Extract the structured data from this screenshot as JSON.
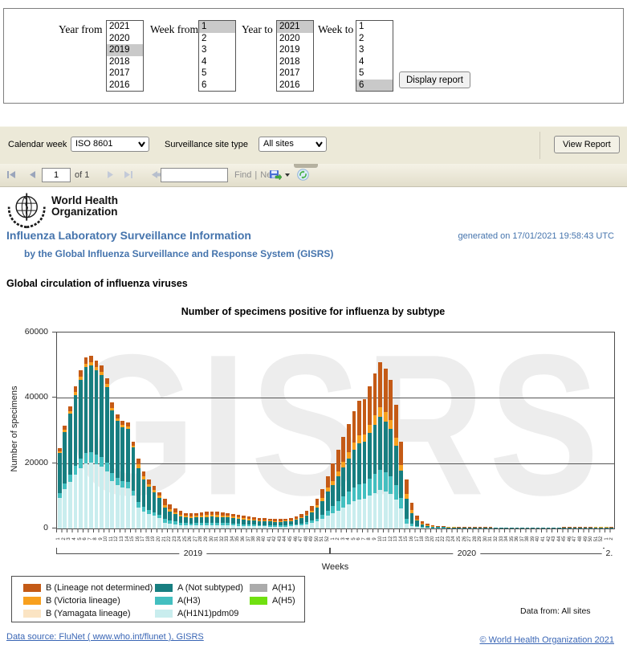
{
  "filter_form": {
    "year_from_label": "Year from",
    "week_from_label": "Week from",
    "year_to_label": "Year to",
    "week_to_label": "Week to",
    "year_options": [
      "2021",
      "2020",
      "2019",
      "2018",
      "2017",
      "2016"
    ],
    "week_options": [
      "1",
      "2",
      "3",
      "4",
      "5",
      "6"
    ],
    "year_from_selected": "2019",
    "week_from_selected": "1",
    "year_to_selected": "2021",
    "week_to_selected": "6",
    "display_report_button": "Display report"
  },
  "param_toolbar": {
    "calendar_week_label": "Calendar week",
    "calendar_week_value": "ISO 8601",
    "site_type_label": "Surveillance site type",
    "site_type_value": "All sites",
    "view_report_button": "View Report"
  },
  "nav_toolbar": {
    "page_number": "1",
    "of_label": "of 1",
    "find_label": "Find",
    "separator": "|",
    "next_label": "Next",
    "search_value": ""
  },
  "header": {
    "who_name_line1": "World Health",
    "who_name_line2": "Organization",
    "title": "Influenza Laboratory Surveillance Information",
    "subtitle": "by the Global Influenza Surveillance and Response System (GISRS)",
    "generated": "generated on 17/01/2021 19:58:43 UTC"
  },
  "section_title": "Global circulation of influenza viruses",
  "chart_data": {
    "type": "bar",
    "stacked": true,
    "title": "Number of specimens positive for influenza by subtype",
    "xlabel": "Weeks",
    "ylabel": "Number of specimens",
    "ylim": [
      0,
      60000
    ],
    "yticks": [
      0,
      20000,
      40000,
      60000
    ],
    "grid": "horizontal",
    "watermark": "GISRS",
    "week_groups": [
      {
        "label": "2019",
        "weeks": 52
      },
      {
        "label": "2020",
        "weeks": 52
      },
      {
        "label": "2.",
        "weeks": 2
      }
    ],
    "series_names": {
      "bnd": "B (Lineage not determined)",
      "vic": "B (Victoria lineage)",
      "yam": "B (Yamagata lineage)",
      "ans": "A (Not subtyped)",
      "h3": "A(H3)",
      "pdm": "A(H1N1)pdm09",
      "h1": "A(H1)",
      "h5": "A(H5)"
    },
    "series_colors": {
      "bnd": "#C45A16",
      "vic": "#F8A01E",
      "yam": "#FBE4C3",
      "ans": "#177E80",
      "h3": "#43BFC0",
      "pdm": "#C9EDEE",
      "h1": "#ABABAB",
      "h5": "#70E010"
    },
    "stack_order": [
      "pdm",
      "h3",
      "ans",
      "vic",
      "bnd"
    ],
    "totals": [
      24500,
      31500,
      37500,
      43500,
      48500,
      52500,
      53000,
      51500,
      50000,
      46000,
      38500,
      35000,
      33000,
      32500,
      26500,
      21500,
      17500,
      15000,
      13000,
      11000,
      9000,
      7500,
      6200,
      5300,
      4800,
      4700,
      4800,
      5000,
      5100,
      5200,
      5100,
      5000,
      4800,
      4500,
      4200,
      3900,
      3600,
      3400,
      3200,
      3100,
      3000,
      2900,
      2900,
      3000,
      3300,
      3800,
      4500,
      5500,
      7000,
      9000,
      12000,
      16000,
      20000,
      24000,
      28000,
      32000,
      36000,
      39000,
      39500,
      43500,
      47500,
      51000,
      49000,
      45500,
      38000,
      26500,
      15000,
      8000,
      4000,
      2200,
      1400,
      1000,
      800,
      700,
      600,
      550,
      500,
      500,
      450,
      450,
      400,
      400,
      400,
      350,
      350,
      350,
      300,
      300,
      300,
      300,
      300,
      300,
      300,
      350,
      350,
      350,
      400,
      400,
      450,
      450,
      500,
      500,
      550,
      600,
      600,
      500
    ],
    "composition_periods": [
      {
        "from": 0,
        "to": 14,
        "fractions": {
          "pdm": 0.38,
          "h3": 0.06,
          "ans": 0.5,
          "vic": 0.02,
          "bnd": 0.04
        }
      },
      {
        "from": 15,
        "to": 19,
        "fractions": {
          "pdm": 0.3,
          "h3": 0.08,
          "ans": 0.48,
          "vic": 0.05,
          "bnd": 0.09
        }
      },
      {
        "from": 20,
        "to": 43,
        "fractions": {
          "pdm": 0.2,
          "h3": 0.14,
          "ans": 0.36,
          "vic": 0.1,
          "bnd": 0.2
        }
      },
      {
        "from": 44,
        "to": 51,
        "fractions": {
          "pdm": 0.24,
          "h3": 0.1,
          "ans": 0.36,
          "vic": 0.08,
          "bnd": 0.22
        }
      },
      {
        "from": 52,
        "to": 65,
        "fractions": {
          "pdm": 0.23,
          "h3": 0.12,
          "ans": 0.32,
          "vic": 0.06,
          "bnd": 0.27
        }
      },
      {
        "from": 66,
        "to": 105,
        "fractions": {
          "pdm": 0.1,
          "h3": 0.1,
          "ans": 0.4,
          "vic": 0.1,
          "bnd": 0.3
        }
      }
    ]
  },
  "legend": {
    "order": [
      "bnd",
      "vic",
      "yam",
      "ans",
      "h3",
      "pdm",
      "h1",
      "h5"
    ]
  },
  "footer": {
    "data_from": "Data from: All sites",
    "data_source": "Data source: FluNet ( www.who.int/flunet ), GISRS",
    "copyright": "© World Health Organization 2021"
  },
  "colors": {
    "toolbar_bg": "#ECE9D8",
    "heading_blue": "#4574AD",
    "link_blue": "#3A66B5"
  }
}
